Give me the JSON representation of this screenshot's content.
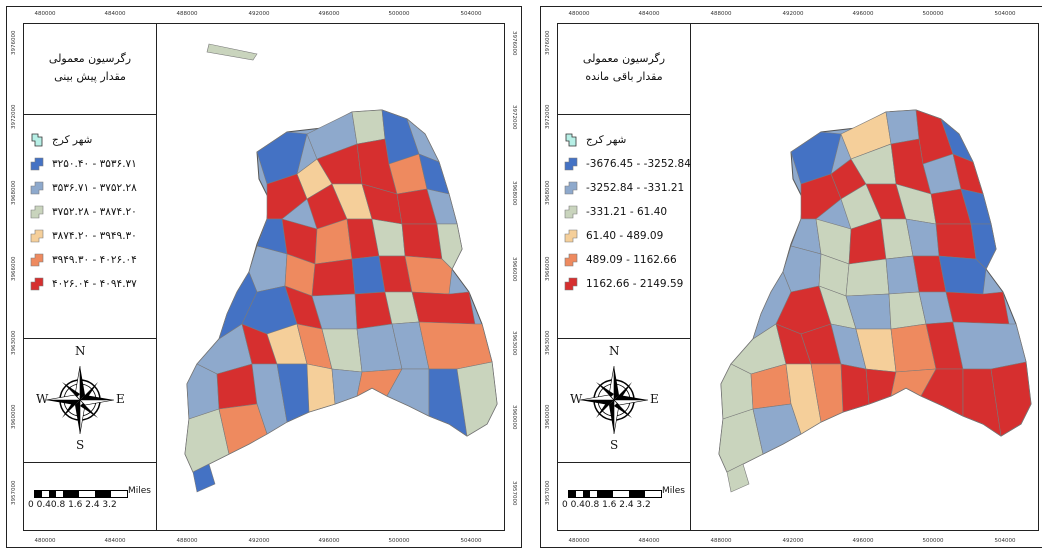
{
  "colors": {
    "class1": "#4472c4",
    "class2": "#8ea9cc",
    "class3": "#c9d4bd",
    "class4": "#f5cf9a",
    "class5": "#ee8a5f",
    "class6": "#d62f2f",
    "city_symbol": "#b7efe6"
  },
  "icons": {
    "north_arrow": "compass-rose-icon"
  },
  "panels": [
    {
      "title_line1": "رگرسیون معمولی",
      "title_line2": "مقدار پیش بینی",
      "legend": [
        {
          "label": "شهر کرج",
          "color_key": "city_symbol"
        },
        {
          "label": "۳۲۵۰.۴۰ - ۳۵۳۶.۷۱",
          "color_key": "class1"
        },
        {
          "label": "۳۵۳۶.۷۱ - ۳۷۵۲.۲۸",
          "color_key": "class2"
        },
        {
          "label": "۳۷۵۲.۲۸ - ۳۸۷۴.۲۰",
          "color_key": "class3"
        },
        {
          "label": "۳۸۷۴.۲۰ - ۳۹۴۹.۳۰",
          "color_key": "class4"
        },
        {
          "label": "۳۹۴۹.۳۰ - ۴۰۲۶.۰۴",
          "color_key": "class5"
        },
        {
          "label": "۴۰۲۶.۰۴ - ۴۰۹۴.۳۷",
          "color_key": "class6"
        }
      ]
    },
    {
      "title_line1": "رگرسیون معمولی",
      "title_line2": "مقدار باقی مانده",
      "legend": [
        {
          "label": "شهر کرج",
          "color_key": "city_symbol"
        },
        {
          "label": "-3676.45 - -3252.84",
          "color_key": "class1"
        },
        {
          "label": "-3252.84 - -331.21",
          "color_key": "class2"
        },
        {
          "label": "-331.21 - 61.40",
          "color_key": "class3"
        },
        {
          "label": "61.40 - 489.09",
          "color_key": "class4"
        },
        {
          "label": "489.09 - 1162.66",
          "color_key": "class5"
        },
        {
          "label": "1162.66 - 2149.59",
          "color_key": "class6"
        }
      ]
    }
  ],
  "north": {
    "N": "N",
    "E": "E",
    "W": "W",
    "S": "S"
  },
  "scale": {
    "unit": "Miles",
    "numbers": "0 0.40.8    1.6    2.4    3.2"
  },
  "axis": {
    "x_ticks": [
      "480000",
      "484000",
      "488000",
      "492000",
      "496000",
      "500000",
      "504000"
    ],
    "y_ticks": [
      "3976000",
      "3972000",
      "3968000",
      "3966000",
      "3963000",
      "3960000",
      "3957000"
    ]
  }
}
